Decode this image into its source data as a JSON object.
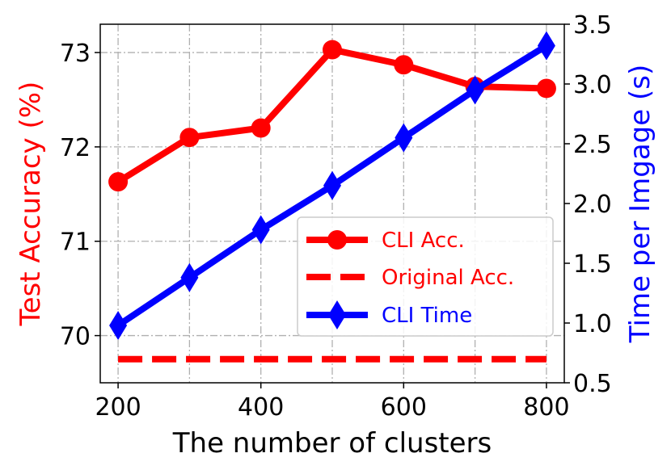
{
  "chart_data": {
    "type": "line",
    "xlabel": "The number of clusters",
    "ylabel_left": "Test Accuracy (%)",
    "ylabel_right": "Time per Imgage (s)",
    "x": [
      200,
      300,
      400,
      500,
      600,
      700,
      800
    ],
    "xlim": [
      175,
      825
    ],
    "xticks": [
      200,
      400,
      600,
      800
    ],
    "ylim_left": [
      69.5,
      73.3
    ],
    "yticks_left": [
      70,
      71,
      72,
      73
    ],
    "ylim_right": [
      0.5,
      3.5
    ],
    "yticks_right": [
      "0.5",
      "1.0",
      "1.5",
      "2.0",
      "2.5",
      "3.0",
      "3.5"
    ],
    "grid": true,
    "legend_position": "lower-right",
    "series": [
      {
        "name": "CLI Acc.",
        "axis": "left",
        "values": [
          71.63,
          72.1,
          72.2,
          73.03,
          72.87,
          72.64,
          72.62
        ],
        "color": "#ff0000",
        "marker": "circle",
        "line_style": "solid"
      },
      {
        "name": "Original Acc.",
        "axis": "left",
        "values": [
          69.75,
          69.75,
          69.75,
          69.75,
          69.75,
          69.75,
          69.75
        ],
        "color": "#ff0000",
        "marker": "none",
        "line_style": "dashed"
      },
      {
        "name": "CLI Time",
        "axis": "right",
        "values": [
          0.98,
          1.38,
          1.78,
          2.15,
          2.55,
          2.95,
          3.32
        ],
        "color": "#0000ff",
        "marker": "diamond",
        "line_style": "solid"
      }
    ]
  }
}
